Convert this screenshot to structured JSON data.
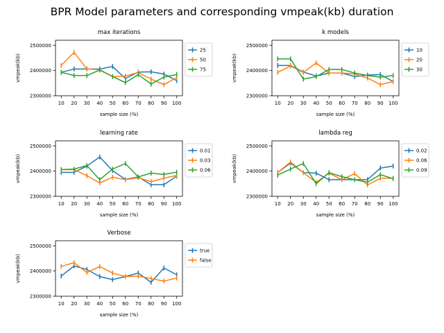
{
  "figure_title": "BPR Model parameters and corresponding vmpeak(kb) duration",
  "chart_data": [
    {
      "type": "line",
      "title": "max iterations",
      "xlabel": "sample size (%)",
      "ylabel": "vmpeak(kb)",
      "x": [
        10,
        20,
        30,
        40,
        50,
        60,
        70,
        80,
        90,
        100
      ],
      "ylim": [
        2300000,
        2520000
      ],
      "yticks": [
        "2300000",
        "2400000",
        "2500000"
      ],
      "legend_position": "outside-right",
      "series": [
        {
          "name": "25",
          "color": "#1f77b4",
          "values": [
            2393000,
            2406000,
            2406000,
            2406000,
            2416000,
            2368000,
            2394000,
            2395000,
            2386000,
            2360000
          ]
        },
        {
          "name": "50",
          "color": "#ff7f0e",
          "values": [
            2420000,
            2472000,
            2406000,
            2403000,
            2376000,
            2378000,
            2392000,
            2366000,
            2344000,
            2372000
          ]
        },
        {
          "name": "75",
          "color": "#2ca02c",
          "values": [
            2393000,
            2380000,
            2380000,
            2402000,
            2376000,
            2352000,
            2384000,
            2346000,
            2374000,
            2384000
          ]
        }
      ]
    },
    {
      "type": "line",
      "title": "k models",
      "xlabel": "sample size (%)",
      "ylabel": "vmpeak(kb)",
      "x": [
        10,
        20,
        30,
        40,
        50,
        60,
        70,
        80,
        90,
        100
      ],
      "ylim": [
        2300000,
        2520000
      ],
      "yticks": [
        "2300000",
        "2400000",
        "2500000"
      ],
      "legend_position": "outside-right",
      "series": [
        {
          "name": "10",
          "color": "#1f77b4",
          "values": [
            2420000,
            2420000,
            2394000,
            2378000,
            2390000,
            2390000,
            2376000,
            2382000,
            2384000,
            2356000
          ]
        },
        {
          "name": "20",
          "color": "#ff7f0e",
          "values": [
            2392000,
            2418000,
            2392000,
            2430000,
            2390000,
            2390000,
            2386000,
            2370000,
            2344000,
            2356000
          ]
        },
        {
          "name": "30",
          "color": "#2ca02c",
          "values": [
            2446000,
            2446000,
            2366000,
            2376000,
            2404000,
            2404000,
            2390000,
            2380000,
            2374000,
            2380000
          ]
        }
      ]
    },
    {
      "type": "line",
      "title": "learning rate",
      "xlabel": "sample size (%)",
      "ylabel": "vmpeak(kb)",
      "x": [
        10,
        20,
        30,
        40,
        50,
        60,
        70,
        80,
        90,
        100
      ],
      "ylim": [
        2300000,
        2520000
      ],
      "yticks": [
        "2300000",
        "2400000",
        "2500000"
      ],
      "legend_position": "outside-right",
      "series": [
        {
          "name": "0.01",
          "color": "#1f77b4",
          "values": [
            2395000,
            2395000,
            2420000,
            2456000,
            2402000,
            2367000,
            2377000,
            2346000,
            2346000,
            2380000
          ]
        },
        {
          "name": "0.03",
          "color": "#ff7f0e",
          "values": [
            2406000,
            2406000,
            2382000,
            2353000,
            2376000,
            2366000,
            2374000,
            2358000,
            2372000,
            2383000
          ]
        },
        {
          "name": "0.06",
          "color": "#2ca02c",
          "values": [
            2406000,
            2408000,
            2422000,
            2366000,
            2408000,
            2430000,
            2377000,
            2392000,
            2387000,
            2396000
          ]
        }
      ]
    },
    {
      "type": "line",
      "title": "lambda reg",
      "xlabel": "sample size (%)",
      "ylabel": "vmpeak(kb)",
      "x": [
        10,
        20,
        30,
        40,
        50,
        60,
        70,
        80,
        90,
        100
      ],
      "ylim": [
        2300000,
        2520000
      ],
      "yticks": [
        "2300000",
        "2400000",
        "2500000"
      ],
      "legend_position": "outside-right",
      "series": [
        {
          "name": "0.02",
          "color": "#1f77b4",
          "values": [
            2394000,
            2432000,
            2394000,
            2392000,
            2366000,
            2366000,
            2366000,
            2366000,
            2412000,
            2420000
          ]
        },
        {
          "name": "0.06",
          "color": "#ff7f0e",
          "values": [
            2394000,
            2436000,
            2394000,
            2355000,
            2392000,
            2366000,
            2390000,
            2345000,
            2372000,
            2372000
          ]
        },
        {
          "name": "0.09",
          "color": "#2ca02c",
          "values": [
            2384000,
            2408000,
            2430000,
            2350000,
            2394000,
            2378000,
            2366000,
            2356000,
            2386000,
            2370000
          ]
        }
      ]
    },
    {
      "type": "line",
      "title": "Verbose",
      "xlabel": "sample size (%)",
      "ylabel": "vmpeak(kb)",
      "x": [
        10,
        20,
        30,
        40,
        50,
        60,
        70,
        80,
        90,
        100
      ],
      "ylim": [
        2300000,
        2520000
      ],
      "yticks": [
        "2300000",
        "2400000",
        "2500000"
      ],
      "legend_position": "outside-right",
      "series": [
        {
          "name": "true",
          "color": "#1f77b4",
          "values": [
            2380000,
            2420000,
            2406000,
            2378000,
            2366000,
            2378000,
            2392000,
            2355000,
            2412000,
            2385000
          ]
        },
        {
          "name": "false",
          "color": "#ff7f0e",
          "values": [
            2418000,
            2433000,
            2394000,
            2418000,
            2392000,
            2378000,
            2380000,
            2370000,
            2360000,
            2372000
          ]
        }
      ]
    }
  ]
}
